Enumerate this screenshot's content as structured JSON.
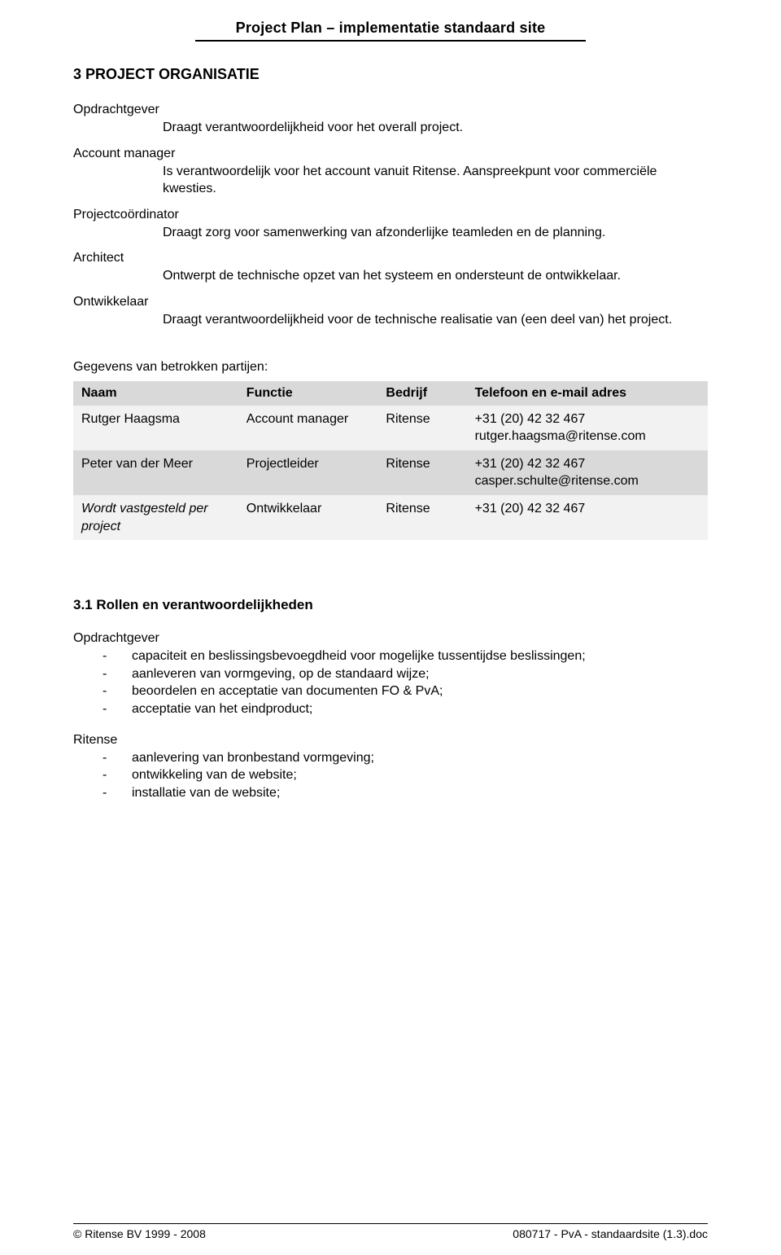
{
  "colors": {
    "table_header_bg": "#d9d9d9",
    "row_even_bg": "#f2f2f2",
    "row_odd_bg": "#d9d9d9",
    "text": "#000000",
    "background": "#ffffff"
  },
  "typography": {
    "body_family": "Arial, Helvetica, sans-serif",
    "body_size_pt": 12,
    "h2_size_pt": 13.5,
    "header_size_pt": 13.5
  },
  "header": {
    "title": "Project Plan – implementatie standaard site"
  },
  "section": {
    "number_title": "3  PROJECT ORGANISATIE"
  },
  "roles": {
    "opdrachtgever": {
      "label": "Opdrachtgever",
      "desc": "Draagt verantwoordelijkheid voor het overall project."
    },
    "account_manager": {
      "label": "Account manager",
      "desc": "Is verantwoordelijk voor het account vanuit Ritense. Aanspreekpunt voor commerciële kwesties."
    },
    "projectcoordinator": {
      "label": "Projectcoördinator",
      "desc": "Draagt zorg voor samenwerking van afzonderlijke teamleden en de planning."
    },
    "architect": {
      "label": "Architect",
      "desc": "Ontwerpt de technische opzet van het systeem en ondersteunt de ontwikkelaar."
    },
    "ontwikkelaar": {
      "label": "Ontwikkelaar",
      "desc": "Draagt verantwoordelijkheid voor de technische realisatie van (een deel van) het project."
    }
  },
  "parties": {
    "intro": "Gegevens van betrokken partijen:",
    "columns": {
      "naam": "Naam",
      "functie": "Functie",
      "bedrijf": "Bedrijf",
      "contact": "Telefoon en e-mail adres"
    },
    "rows": [
      {
        "naam": "Rutger Haagsma",
        "naam_italic": false,
        "functie": "Account manager",
        "bedrijf": "Ritense",
        "contact": "+31 (20) 42 32 467\nrutger.haagsma@ritense.com"
      },
      {
        "naam": "Peter van der Meer",
        "naam_italic": false,
        "functie": "Projectleider",
        "bedrijf": "Ritense",
        "contact": "+31 (20) 42 32 467\ncasper.schulte@ritense.com"
      },
      {
        "naam": "Wordt vastgesteld per project",
        "naam_italic": true,
        "functie": "Ontwikkelaar",
        "bedrijf": "Ritense",
        "contact": "+31 (20) 42 32 467"
      }
    ]
  },
  "subsection": {
    "title": "3.1  Rollen en verantwoordelijkheden",
    "opdrachtgever": {
      "label": "Opdrachtgever",
      "items": [
        "capaciteit en beslissingsbevoegdheid voor mogelijke tussentijdse beslissingen;",
        "aanleveren van vormgeving, op de standaard wijze;",
        "beoordelen en acceptatie van documenten FO & PvA;",
        "acceptatie van het eindproduct;"
      ]
    },
    "ritense": {
      "label": "Ritense",
      "items": [
        "aanlevering van bronbestand vormgeving;",
        "ontwikkeling van de website;",
        "installatie van de website;"
      ]
    }
  },
  "footer": {
    "left": "© Ritense BV 1999 - 2008",
    "right": "080717 - PvA - standaardsite (1.3).doc"
  }
}
